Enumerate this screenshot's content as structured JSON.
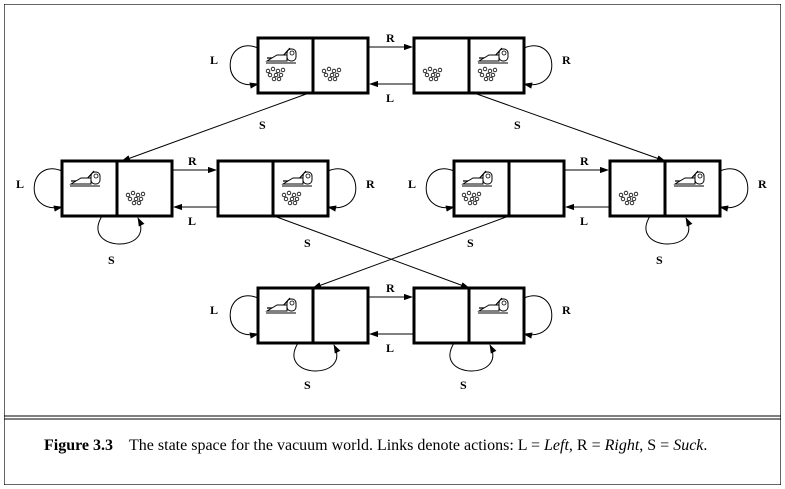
{
  "diagram": {
    "action_labels": {
      "left": "L",
      "right": "R",
      "suck": "S"
    }
  },
  "caption": {
    "figure_label": "Figure 3.3",
    "text_1": "The state space for the vacuum world. Links denote actions: L = ",
    "left_word": "Left",
    "text_2": ", R = ",
    "right_word": "Right",
    "text_3": ", S = ",
    "suck_word": "Suck",
    "text_4": "."
  }
}
